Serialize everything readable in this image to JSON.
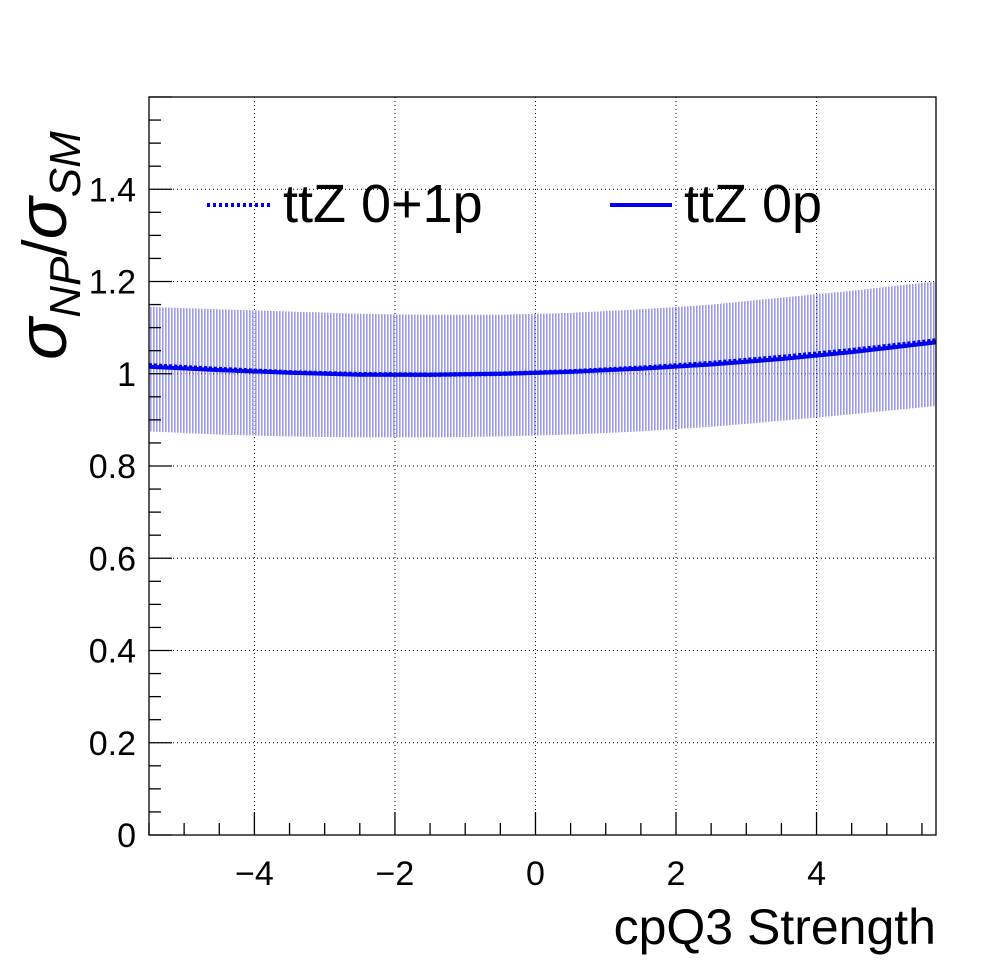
{
  "chart_data": {
    "type": "line",
    "xlabel": "cpQ3 Strength",
    "ylabel": {
      "sigma1": "σ",
      "sub1": "NP",
      "slash": "/",
      "sigma2": "σ",
      "sub2": "SM"
    },
    "xlim": [
      -5.5,
      5.7
    ],
    "ylim": [
      0,
      1.6
    ],
    "x_ticks": [
      {
        "value": -4,
        "label": "−4"
      },
      {
        "value": -2,
        "label": "−2"
      },
      {
        "value": 0,
        "label": "0"
      },
      {
        "value": 2,
        "label": "2"
      },
      {
        "value": 4,
        "label": "4"
      }
    ],
    "y_ticks": [
      {
        "value": 0,
        "label": "0"
      },
      {
        "value": 0.2,
        "label": "0.2"
      },
      {
        "value": 0.4,
        "label": "0.4"
      },
      {
        "value": 0.6,
        "label": "0.6"
      },
      {
        "value": 0.8,
        "label": "0.8"
      },
      {
        "value": 1.0,
        "label": "1"
      },
      {
        "value": 1.2,
        "label": "1.2"
      },
      {
        "value": 1.4,
        "label": "1.4"
      }
    ],
    "grid": true,
    "legend_position": "top",
    "x": [
      -5.5,
      -4.5,
      -3.5,
      -2.5,
      -1.5,
      -0.5,
      0.5,
      1.5,
      2.5,
      3.5,
      4.5,
      5.7
    ],
    "band": {
      "upper": [
        1.145,
        1.14,
        1.135,
        1.13,
        1.128,
        1.128,
        1.132,
        1.14,
        1.15,
        1.165,
        1.18,
        1.2
      ],
      "lower": [
        0.875,
        0.868,
        0.864,
        0.862,
        0.862,
        0.864,
        0.868,
        0.875,
        0.885,
        0.898,
        0.912,
        0.93
      ],
      "color": "#3b3bd6"
    },
    "series": [
      {
        "name": "ttZ 0+1p",
        "style": "dotted",
        "color": "#0000ee",
        "values": [
          1.018,
          1.01,
          1.003,
          0.999,
          0.998,
          1.0,
          1.005,
          1.013,
          1.023,
          1.036,
          1.051,
          1.072
        ]
      },
      {
        "name": "ttZ 0p",
        "style": "solid",
        "color": "#0000ee",
        "values": [
          1.015,
          1.008,
          1.002,
          0.998,
          0.998,
          1.0,
          1.004,
          1.011,
          1.02,
          1.032,
          1.047,
          1.068
        ]
      }
    ]
  }
}
